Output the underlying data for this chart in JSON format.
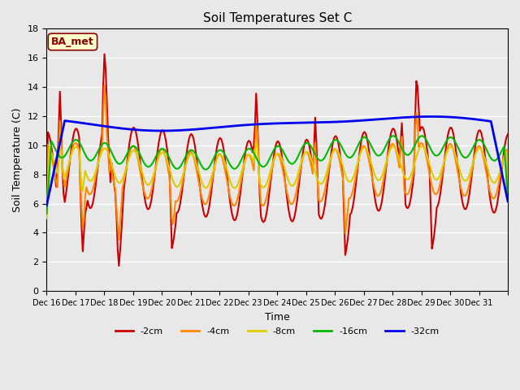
{
  "title": "Soil Temperatures Set C",
  "xlabel": "Time",
  "ylabel": "Soil Temperature (C)",
  "ylim": [
    0,
    18
  ],
  "yticks": [
    0,
    2,
    4,
    6,
    8,
    10,
    12,
    14,
    16,
    18
  ],
  "annotation": "BA_met",
  "background_color": "#e8e8e8",
  "series": {
    "-2cm": {
      "color": "#cc0000",
      "lw": 1.5
    },
    "-4cm": {
      "color": "#ff8800",
      "lw": 1.5
    },
    "-8cm": {
      "color": "#ddcc00",
      "lw": 1.5
    },
    "-16cm": {
      "color": "#00bb00",
      "lw": 1.5
    },
    "-32cm": {
      "color": "#0000ee",
      "lw": 2.0
    }
  },
  "x_tick_labels": [
    "Dec 16",
    "Dec 17",
    "Dec 18",
    "Dec 19",
    "Dec 20",
    "Dec 21",
    "Dec 22",
    "Dec 23",
    "Dec 24",
    "Dec 25",
    "Dec 26",
    "Dec 27",
    "Dec 28",
    "Dec 29",
    "Dec 30",
    "Dec 31"
  ],
  "n_days": 16,
  "pts_per_day": 24
}
